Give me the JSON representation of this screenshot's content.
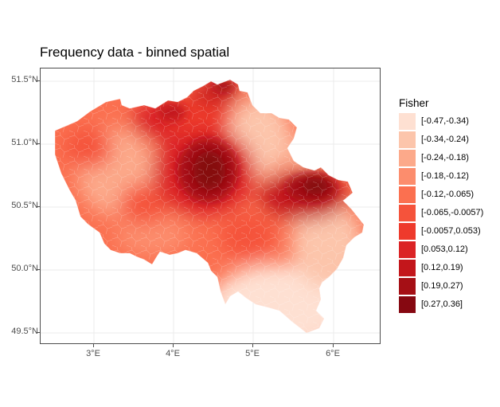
{
  "title": "Frequency data - binned spatial",
  "axes": {
    "y_ticks": [
      "51.5°N",
      "51.0°N",
      "50.5°N",
      "50.0°N",
      "49.5°N"
    ],
    "x_ticks": [
      "3°E",
      "4°E",
      "5°E",
      "6°E"
    ]
  },
  "legend": {
    "title": "Fisher",
    "items": [
      {
        "label": "[-0.47,-0.34)",
        "color": "#fee0d2"
      },
      {
        "label": "[-0.34,-0.24)",
        "color": "#fcc5ab"
      },
      {
        "label": "[-0.24,-0.18)",
        "color": "#fca98a"
      },
      {
        "label": "[-0.18,-0.12)",
        "color": "#fc8d6d"
      },
      {
        "label": "[-0.12,-0.065)",
        "color": "#fb7050"
      },
      {
        "label": "[-0.065,-0.0057)",
        "color": "#f5533b"
      },
      {
        "label": "[-0.0057,0.053)",
        "color": "#ee3a2c"
      },
      {
        "label": "[0.053,0.12)",
        "color": "#db2325"
      },
      {
        "label": "[0.12,0.19)",
        "color": "#c3161b"
      },
      {
        "label": "[0.19,0.27)",
        "color": "#a50f15"
      },
      {
        "label": "[0.27,0.36]",
        "color": "#860811"
      }
    ]
  }
}
